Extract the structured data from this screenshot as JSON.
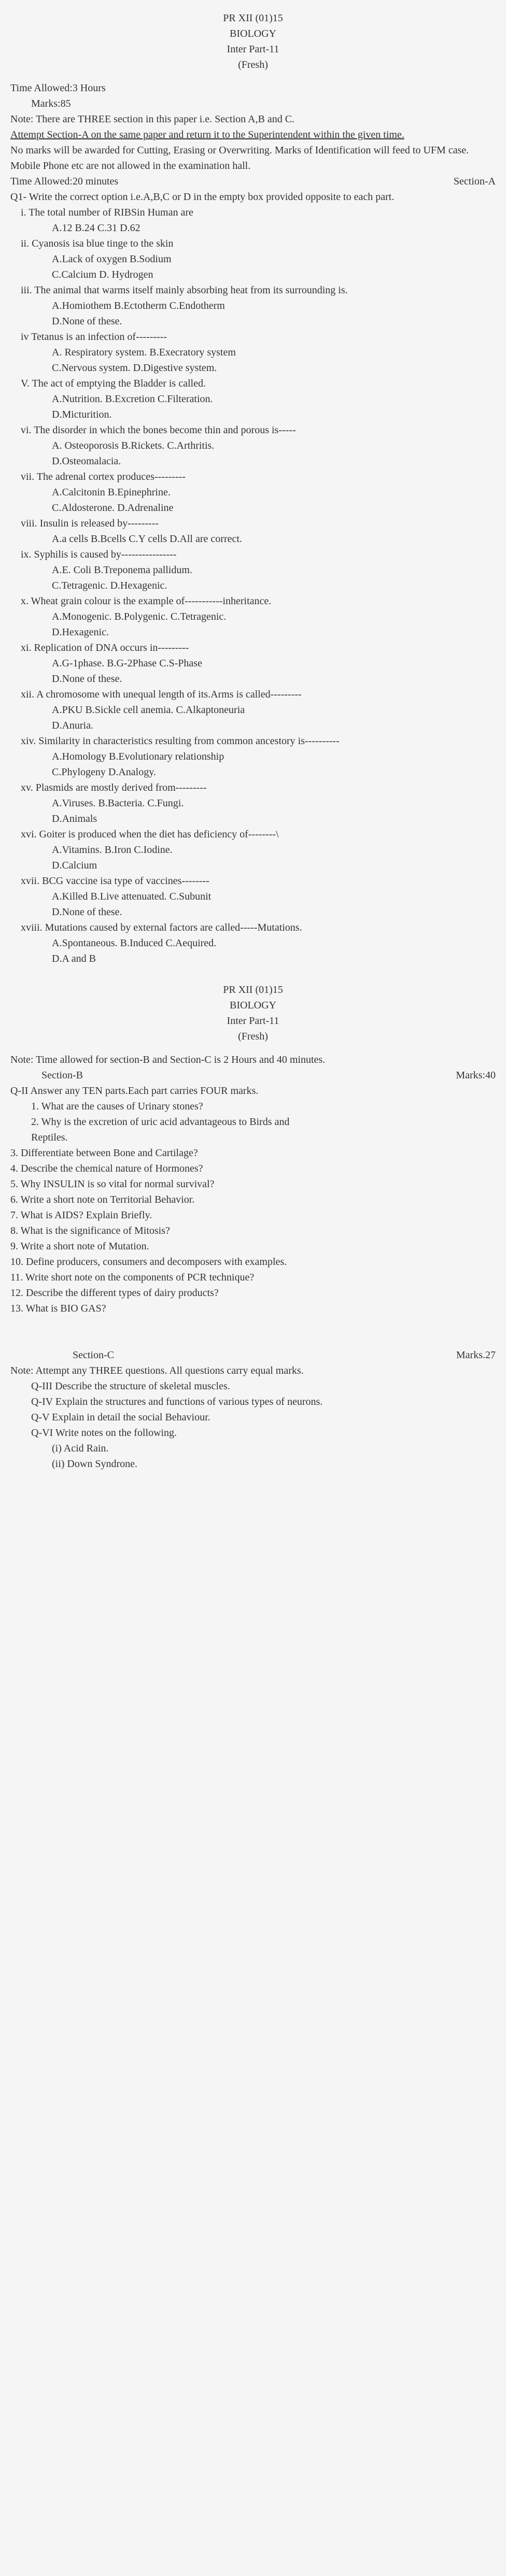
{
  "header": {
    "code": "PR XII (01)15",
    "subject": "BIOLOGY",
    "part": "Inter Part-11",
    "fresh": "(Fresh)"
  },
  "meta": {
    "timeAllowed": "Time Allowed:3 Hours",
    "marks": "Marks:85",
    "note": "Note: There are THREE section in this paper i.e. Section A,B and C.",
    "instruction1": "Attempt Section-A on the same paper and return it to the Superintendent within the given time.",
    "instruction2": "No marks will be awarded for Cutting, Erasing or Overwriting. Marks of Identification will feed to UFM case. Mobile Phone etc are not allowed in the examination hall.",
    "sectionA_time": "Time Allowed:20 minutes",
    "sectionA_label": "Section-A",
    "q1_instruction": "Q1- Write the correct option i.e.A,B,C or D in the empty box provided opposite to each part."
  },
  "mcqs": [
    {
      "num": "i.",
      "q": "The total number of RIBSin Human are",
      "opts": "A.12        B.24    C.31    D.62"
    },
    {
      "num": "ii.",
      "q": "Cyanosis isa blue tinge to the skin",
      "opts": "A.Lack of oxygen        B.Sodium\nC.Calcium    D. Hydrogen"
    },
    {
      "num": "iii.",
      "q": "The animal that warms itself mainly absorbing heat from its surrounding is.",
      "opts": "A.Homiothem    B.Ectotherm    C.Endotherm\nD.None of these."
    },
    {
      "num": "iv",
      "q": "Tetanus is an infection of---------",
      "opts": "A. Respiratory system.    B.Execratory system\nC.Nervous system.        D.Digestive system."
    },
    {
      "num": "V.",
      "q": "The act of emptying the Bladder is called.",
      "opts": "A.Nutrition.        B.Excretion    C.Filteration.\nD.Micturition."
    },
    {
      "num": "vi.",
      "q": "The disorder in which the bones become thin and porous is-----",
      "opts": "A. Osteoporosis    B.Rickets.    C.Arthritis.\nD.Osteomalacia."
    },
    {
      "num": "vii.",
      "q": "The adrenal cortex produces---------",
      "opts": "A.Calcitonin        B.Epinephrine.\nC.Aldosterone.    D.Adrenaline"
    },
    {
      "num": "viii.",
      "q": "Insulin is released by---------",
      "opts": "A.a cells    B.Bcells        C.Y cells    D.All are correct."
    },
    {
      "num": "ix.",
      "q": "Syphilis is caused by----------------",
      "opts": "A.E. Coli    B.Treponema pallidum.\nC.Tetragenic.    D.Hexagenic."
    },
    {
      "num": "x.",
      "q": "Wheat grain colour is the example of-----------inheritance.",
      "opts": "A.Monogenic.    B.Polygenic.    C.Tetragenic.\nD.Hexagenic."
    },
    {
      "num": "xi.",
      "q": "Replication of DNA occurs in---------",
      "opts": "A.G-1phase.    B.G-2Phase    C.S-Phase\nD.None of these."
    },
    {
      "num": "xii.",
      "q": "A chromosome with unequal length of its.Arms is called---------",
      "opts": "A.PKU    B.Sickle cell anemia.    C.Alkaptoneuria\nD.Anuria."
    },
    {
      "num": "xiv.",
      "q": "Similarity in characteristics resulting from common ancestory is----------",
      "opts": "A.Homology    B.Evolutionary relationship\nC.Phylogeny    D.Analogy."
    },
    {
      "num": "xv.",
      "q": "Plasmids are mostly derived from---------",
      "opts": "A.Viruses.    B.Bacteria.    C.Fungi.\nD.Animals"
    },
    {
      "num": "xvi.",
      "q": "Goiter is produced when the diet has deficiency of--------\\",
      "opts": "A.Vitamins.    B.Iron        C.Iodine.\nD.Calcium"
    },
    {
      "num": "xvii.",
      "q": "BCG vaccine isa type of vaccines--------",
      "opts": "A.Killed    B.Live attenuated.    C.Subunit\nD.None of these."
    },
    {
      "num": "xviii.",
      "q": "Mutations caused by external factors are called-----Mutations.",
      "opts": "A.Spontaneous.    B.Induced    C.Aequired.\nD.A and B"
    }
  ],
  "header2": {
    "code": "PR XII (01)15",
    "subject": "BIOLOGY",
    "part": "Inter Part-11",
    "fresh": "(Fresh)"
  },
  "sectionB": {
    "note": "Note:    Time allowed for section-B and Section-C is 2 Hours and 40 minutes.",
    "label": "Section-B",
    "marks": "Marks:40",
    "q2": "Q-II        Answer any TEN parts.Each part carries FOUR marks.",
    "questions": [
      {
        "n": "1.",
        "t": "What are the causes of Urinary stones?"
      },
      {
        "n": "2.",
        "t": "Why is the excretion of uric acid advantageous to Birds and"
      },
      {
        "n": "",
        "t": "Reptiles."
      },
      {
        "n": "3.",
        "t": "Differentiate between Bone and Cartilage?"
      },
      {
        "n": "4.",
        "t": "Describe the chemical nature of Hormones?"
      },
      {
        "n": "5.",
        "t": "Why INSULIN is so vital for normal survival?"
      },
      {
        "n": "6.",
        "t": "Write a short note on Territorial Behavior."
      },
      {
        "n": "7.",
        "t": "What is AIDS? Explain Briefly."
      },
      {
        "n": "8.",
        "t": "What is the significance of Mitosis?"
      },
      {
        "n": "9.",
        "t": "Write a short note of Mutation."
      },
      {
        "n": "10.",
        "t": "Define producers, consumers and decomposers with examples."
      },
      {
        "n": "11.",
        "t": "Write short note on the components of PCR technique?"
      },
      {
        "n": "12.",
        "t": "Describe the different types of dairy products?"
      },
      {
        "n": "13.",
        "t": "What is BIO GAS?"
      }
    ]
  },
  "sectionC": {
    "label": "Section-C",
    "marks": "Marks.27",
    "note": "Note:    Attempt any THREE questions. All questions carry equal marks.",
    "questions": [
      {
        "n": "Q-III",
        "t": "Describe the structure of skeletal muscles."
      },
      {
        "n": "Q-IV",
        "t": "Explain the structures and functions of various types of neurons."
      },
      {
        "n": "Q-V",
        "t": "Explain in detail the social Behaviour."
      },
      {
        "n": "Q-VI",
        "t": "Write notes on the following."
      }
    ],
    "sub": [
      {
        "n": "(i)",
        "t": "Acid Rain."
      },
      {
        "n": "(ii)",
        "t": "Down Syndrone."
      }
    ]
  }
}
